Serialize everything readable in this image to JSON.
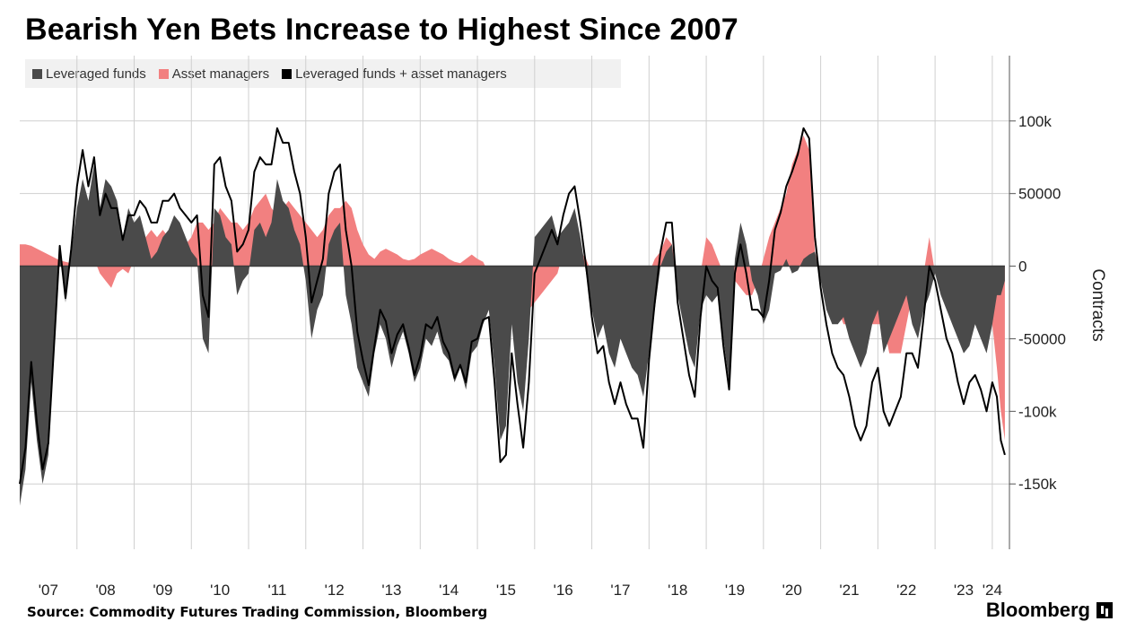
{
  "title": "Bearish Yen Bets Increase to Highest Since 2007",
  "source": "Source: Commodity Futures Trading Commission, Bloomberg",
  "brand": "Bloomberg",
  "colors": {
    "leveraged": "#4a4a4a",
    "asset": "#f28080",
    "combined": "#000000",
    "grid": "#cfcfcf"
  },
  "legend": [
    {
      "label": "Leveraged funds",
      "color": "#4a4a4a"
    },
    {
      "label": "Asset managers",
      "color": "#f28080"
    },
    {
      "label": "Leveraged funds + asset managers",
      "color": "#000000"
    }
  ],
  "chart_data": {
    "type": "area",
    "ylabel": "Contracts",
    "ylim": [
      -195000,
      145000
    ],
    "yticks": [
      {
        "value": 100000,
        "label": "100k"
      },
      {
        "value": 50000,
        "label": "50000"
      },
      {
        "value": 0,
        "label": "0"
      },
      {
        "value": -50000,
        "label": "-50000"
      },
      {
        "value": -100000,
        "label": "-100k"
      },
      {
        "value": -150000,
        "label": "-150k"
      }
    ],
    "xlim": [
      2007.0,
      2024.3
    ],
    "xticks": [
      {
        "value": 2007.5,
        "label": "'07"
      },
      {
        "value": 2008.5,
        "label": "'08"
      },
      {
        "value": 2009.5,
        "label": "'09"
      },
      {
        "value": 2010.5,
        "label": "'10"
      },
      {
        "value": 2011.5,
        "label": "'11"
      },
      {
        "value": 2012.5,
        "label": "'12"
      },
      {
        "value": 2013.5,
        "label": "'13"
      },
      {
        "value": 2014.5,
        "label": "'14"
      },
      {
        "value": 2015.5,
        "label": "'15"
      },
      {
        "value": 2016.5,
        "label": "'16"
      },
      {
        "value": 2017.5,
        "label": "'17"
      },
      {
        "value": 2018.5,
        "label": "'18"
      },
      {
        "value": 2019.5,
        "label": "'19"
      },
      {
        "value": 2020.5,
        "label": "'20"
      },
      {
        "value": 2021.5,
        "label": "'21"
      },
      {
        "value": 2022.5,
        "label": "'22"
      },
      {
        "value": 2023.5,
        "label": "'23"
      },
      {
        "value": 2024.0,
        "label": "'24"
      }
    ],
    "vgrid": [
      2008,
      2009,
      2010,
      2011,
      2012,
      2013,
      2014,
      2015,
      2016,
      2017,
      2018,
      2019,
      2020,
      2021,
      2022,
      2023,
      2024
    ],
    "hgrid": [
      100000,
      50000,
      -50000,
      -100000,
      -150000
    ],
    "x": [
      2007.0,
      2007.1,
      2007.2,
      2007.3,
      2007.4,
      2007.5,
      2007.6,
      2007.7,
      2007.8,
      2007.9,
      2008.0,
      2008.1,
      2008.2,
      2008.3,
      2008.4,
      2008.5,
      2008.6,
      2008.7,
      2008.8,
      2008.9,
      2009.0,
      2009.1,
      2009.2,
      2009.3,
      2009.4,
      2009.5,
      2009.6,
      2009.7,
      2009.8,
      2009.9,
      2010.0,
      2010.1,
      2010.2,
      2010.3,
      2010.4,
      2010.5,
      2010.6,
      2010.7,
      2010.8,
      2010.9,
      2011.0,
      2011.1,
      2011.2,
      2011.3,
      2011.4,
      2011.5,
      2011.6,
      2011.7,
      2011.8,
      2011.9,
      2012.0,
      2012.1,
      2012.2,
      2012.3,
      2012.4,
      2012.5,
      2012.6,
      2012.7,
      2012.8,
      2012.9,
      2013.0,
      2013.1,
      2013.2,
      2013.3,
      2013.4,
      2013.5,
      2013.6,
      2013.7,
      2013.8,
      2013.9,
      2014.0,
      2014.1,
      2014.2,
      2014.3,
      2014.4,
      2014.5,
      2014.6,
      2014.7,
      2014.8,
      2014.9,
      2015.0,
      2015.1,
      2015.2,
      2015.3,
      2015.4,
      2015.5,
      2015.6,
      2015.7,
      2015.8,
      2015.9,
      2016.0,
      2016.1,
      2016.2,
      2016.3,
      2016.4,
      2016.5,
      2016.6,
      2016.7,
      2016.8,
      2016.9,
      2017.0,
      2017.1,
      2017.2,
      2017.3,
      2017.4,
      2017.5,
      2017.6,
      2017.7,
      2017.8,
      2017.9,
      2018.0,
      2018.1,
      2018.2,
      2018.3,
      2018.4,
      2018.5,
      2018.6,
      2018.7,
      2018.8,
      2018.9,
      2019.0,
      2019.1,
      2019.2,
      2019.3,
      2019.4,
      2019.5,
      2019.6,
      2019.7,
      2019.8,
      2019.9,
      2020.0,
      2020.1,
      2020.2,
      2020.3,
      2020.4,
      2020.5,
      2020.6,
      2020.7,
      2020.8,
      2020.9,
      2021.0,
      2021.1,
      2021.2,
      2021.3,
      2021.4,
      2021.5,
      2021.6,
      2021.7,
      2021.8,
      2021.9,
      2022.0,
      2022.1,
      2022.2,
      2022.3,
      2022.4,
      2022.5,
      2022.6,
      2022.7,
      2022.8,
      2022.9,
      2023.0,
      2023.1,
      2023.2,
      2023.3,
      2023.4,
      2023.5,
      2023.6,
      2023.7,
      2023.8,
      2023.9,
      2024.0,
      2024.08,
      2024.15,
      2024.22
    ],
    "series": [
      {
        "name": "Leveraged funds",
        "values": [
          -165000,
          -140000,
          -80000,
          -120000,
          -150000,
          -130000,
          -60000,
          10000,
          -25000,
          10000,
          40000,
          60000,
          45000,
          70000,
          40000,
          60000,
          55000,
          45000,
          20000,
          40000,
          30000,
          35000,
          20000,
          5000,
          10000,
          20000,
          25000,
          35000,
          30000,
          20000,
          10000,
          5000,
          -50000,
          -60000,
          40000,
          35000,
          20000,
          15000,
          -20000,
          -10000,
          -5000,
          25000,
          30000,
          20000,
          30000,
          60000,
          45000,
          40000,
          25000,
          15000,
          -10000,
          -50000,
          -30000,
          -20000,
          15000,
          25000,
          30000,
          -20000,
          -40000,
          -70000,
          -80000,
          -90000,
          -60000,
          -40000,
          -50000,
          -70000,
          -55000,
          -45000,
          -60000,
          -80000,
          -70000,
          -50000,
          -55000,
          -45000,
          -60000,
          -65000,
          -80000,
          -70000,
          -85000,
          -60000,
          -55000,
          -40000,
          -30000,
          -70000,
          -120000,
          -110000,
          -40000,
          -80000,
          -100000,
          -50000,
          20000,
          25000,
          30000,
          35000,
          20000,
          25000,
          30000,
          40000,
          20000,
          -5000,
          -30000,
          -50000,
          -40000,
          -60000,
          -70000,
          -50000,
          -60000,
          -70000,
          -75000,
          -90000,
          -60000,
          -30000,
          0,
          10000,
          15000,
          -20000,
          -40000,
          -60000,
          -70000,
          -30000,
          -20000,
          -25000,
          -20000,
          -50000,
          -80000,
          5000,
          30000,
          15000,
          -10000,
          -20000,
          -40000,
          -30000,
          -5000,
          -3000,
          5000,
          -5000,
          -3000,
          5000,
          8000,
          10000,
          -10000,
          -30000,
          -40000,
          -40000,
          -35000,
          -50000,
          -60000,
          -70000,
          -60000,
          -40000,
          -30000,
          -60000,
          -50000,
          -40000,
          -30000,
          -20000,
          -40000,
          -50000,
          -30000,
          -20000,
          -5000,
          -20000,
          -30000,
          -40000,
          -50000,
          -60000,
          -55000,
          -40000,
          -50000,
          -60000,
          -40000,
          -20000,
          -20000,
          -10000
        ]
      },
      {
        "name": "Asset managers",
        "values": [
          15000,
          15000,
          14000,
          12000,
          10000,
          8000,
          6000,
          4000,
          3000,
          2000,
          15000,
          20000,
          10000,
          5000,
          -5000,
          -10000,
          -15000,
          -5000,
          -2000,
          -5000,
          5000,
          10000,
          20000,
          25000,
          20000,
          25000,
          20000,
          15000,
          10000,
          15000,
          20000,
          30000,
          30000,
          25000,
          30000,
          40000,
          35000,
          30000,
          30000,
          25000,
          30000,
          40000,
          45000,
          50000,
          40000,
          35000,
          40000,
          45000,
          40000,
          35000,
          30000,
          25000,
          20000,
          25000,
          35000,
          40000,
          40000,
          45000,
          40000,
          25000,
          15000,
          8000,
          5000,
          10000,
          12000,
          10000,
          8000,
          5000,
          4000,
          5000,
          8000,
          10000,
          12000,
          10000,
          8000,
          5000,
          3000,
          2000,
          5000,
          8000,
          5000,
          3000,
          -5000,
          -10000,
          -15000,
          -20000,
          -20000,
          -15000,
          -25000,
          -30000,
          -25000,
          -20000,
          -15000,
          -10000,
          -5000,
          10000,
          20000,
          15000,
          10000,
          5000,
          -5000,
          -10000,
          -15000,
          -20000,
          -25000,
          -30000,
          -35000,
          -35000,
          -30000,
          -35000,
          -5000,
          5000,
          10000,
          20000,
          15000,
          -5000,
          -10000,
          -15000,
          -20000,
          -5000,
          20000,
          15000,
          5000,
          -5000,
          -5000,
          -10000,
          -15000,
          -20000,
          -20000,
          -10000,
          5000,
          20000,
          30000,
          40000,
          50000,
          70000,
          80000,
          90000,
          80000,
          10000,
          -5000,
          -10000,
          -20000,
          -30000,
          -40000,
          -40000,
          -50000,
          -50000,
          -50000,
          -40000,
          -40000,
          -40000,
          -60000,
          -60000,
          -60000,
          -40000,
          -20000,
          -20000,
          -5000,
          20000,
          -5000,
          -10000,
          -20000,
          -20000,
          -30000,
          -35000,
          -25000,
          -35000,
          -35000,
          -40000,
          -40000,
          -70000,
          -100000,
          -120000
        ]
      },
      {
        "name": "Leveraged funds + asset managers",
        "values": [
          -150000,
          -125000,
          -66000,
          -108000,
          -140000,
          -122000,
          -54000,
          14000,
          -22000,
          12000,
          55000,
          80000,
          55000,
          75000,
          35000,
          50000,
          40000,
          40000,
          18000,
          35000,
          35000,
          45000,
          40000,
          30000,
          30000,
          45000,
          45000,
          50000,
          40000,
          35000,
          30000,
          35000,
          -20000,
          -35000,
          70000,
          75000,
          55000,
          45000,
          10000,
          15000,
          25000,
          65000,
          75000,
          70000,
          70000,
          95000,
          85000,
          85000,
          65000,
          50000,
          20000,
          -25000,
          -10000,
          5000,
          50000,
          65000,
          70000,
          25000,
          0,
          -45000,
          -65000,
          -82000,
          -55000,
          -30000,
          -38000,
          -60000,
          -47000,
          -40000,
          -56000,
          -75000,
          -62000,
          -40000,
          -43000,
          -35000,
          -52000,
          -60000,
          -77000,
          -68000,
          -80000,
          -52000,
          -50000,
          -37000,
          -35000,
          -80000,
          -135000,
          -130000,
          -60000,
          -95000,
          -125000,
          -80000,
          -5000,
          5000,
          15000,
          25000,
          15000,
          35000,
          50000,
          55000,
          30000,
          0,
          -35000,
          -60000,
          -55000,
          -80000,
          -95000,
          -80000,
          -95000,
          -105000,
          -105000,
          -125000,
          -65000,
          -25000,
          10000,
          30000,
          30000,
          -25000,
          -50000,
          -75000,
          -90000,
          -35000,
          0,
          -10000,
          -15000,
          -55000,
          -85000,
          -5000,
          15000,
          -5000,
          -30000,
          -30000,
          -35000,
          -10000,
          25000,
          37000,
          55000,
          65000,
          77000,
          95000,
          88000,
          20000,
          -15000,
          -40000,
          -60000,
          -70000,
          -75000,
          -90000,
          -110000,
          -120000,
          -110000,
          -80000,
          -70000,
          -100000,
          -110000,
          -100000,
          -90000,
          -60000,
          -60000,
          -70000,
          -35000,
          0,
          -10000,
          -30000,
          -50000,
          -60000,
          -80000,
          -95000,
          -80000,
          -75000,
          -85000,
          -100000,
          -80000,
          -90000,
          -120000,
          -130000
        ]
      }
    ]
  }
}
